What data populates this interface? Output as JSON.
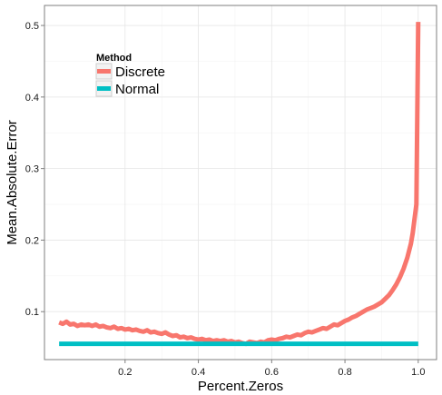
{
  "chart_data": {
    "type": "line",
    "xlabel": "Percent.Zeros",
    "ylabel": "Mean.Absolute.Error",
    "xlim": [
      -0.02,
      1.05
    ],
    "ylim": [
      0.033,
      0.528
    ],
    "x_ticks": [
      0.2,
      0.4,
      0.6,
      0.8,
      1.0
    ],
    "x_tick_labels": [
      "0.2",
      "0.4",
      "0.6",
      "0.8",
      "1.0"
    ],
    "y_ticks": [
      0.1,
      0.2,
      0.3,
      0.4,
      0.5
    ],
    "y_tick_labels": [
      "0.1",
      "0.2",
      "0.3",
      "0.4",
      "0.5"
    ],
    "grid": true,
    "legend": {
      "title": "Method",
      "position": "top-left",
      "entries": [
        "Discrete",
        "Normal"
      ]
    },
    "series": [
      {
        "name": "Discrete",
        "color": "#F8766D",
        "x": [
          0.02,
          0.03,
          0.04,
          0.05,
          0.06,
          0.07,
          0.08,
          0.09,
          0.1,
          0.11,
          0.12,
          0.13,
          0.14,
          0.15,
          0.16,
          0.17,
          0.18,
          0.19,
          0.2,
          0.21,
          0.22,
          0.23,
          0.24,
          0.25,
          0.26,
          0.27,
          0.28,
          0.29,
          0.3,
          0.31,
          0.32,
          0.33,
          0.34,
          0.35,
          0.36,
          0.37,
          0.38,
          0.39,
          0.4,
          0.41,
          0.42,
          0.43,
          0.44,
          0.45,
          0.46,
          0.47,
          0.48,
          0.49,
          0.5,
          0.51,
          0.52,
          0.53,
          0.54,
          0.55,
          0.56,
          0.57,
          0.58,
          0.59,
          0.6,
          0.61,
          0.62,
          0.63,
          0.64,
          0.65,
          0.66,
          0.67,
          0.68,
          0.69,
          0.7,
          0.71,
          0.72,
          0.73,
          0.74,
          0.75,
          0.76,
          0.77,
          0.78,
          0.79,
          0.8,
          0.81,
          0.82,
          0.83,
          0.84,
          0.85,
          0.86,
          0.87,
          0.88,
          0.89,
          0.9,
          0.91,
          0.92,
          0.93,
          0.94,
          0.95,
          0.96,
          0.97,
          0.98,
          0.985,
          0.99,
          0.995,
          1.0
        ],
        "values": [
          0.085,
          0.083,
          0.086,
          0.082,
          0.083,
          0.08,
          0.082,
          0.081,
          0.082,
          0.08,
          0.082,
          0.079,
          0.08,
          0.078,
          0.077,
          0.079,
          0.076,
          0.077,
          0.075,
          0.076,
          0.074,
          0.075,
          0.073,
          0.072,
          0.074,
          0.071,
          0.072,
          0.07,
          0.069,
          0.071,
          0.068,
          0.066,
          0.067,
          0.064,
          0.065,
          0.063,
          0.064,
          0.062,
          0.061,
          0.062,
          0.06,
          0.061,
          0.059,
          0.06,
          0.059,
          0.06,
          0.058,
          0.059,
          0.057,
          0.058,
          0.056,
          0.055,
          0.058,
          0.057,
          0.056,
          0.058,
          0.057,
          0.06,
          0.061,
          0.06,
          0.062,
          0.063,
          0.065,
          0.064,
          0.066,
          0.068,
          0.067,
          0.07,
          0.072,
          0.071,
          0.073,
          0.075,
          0.077,
          0.076,
          0.079,
          0.082,
          0.081,
          0.084,
          0.087,
          0.089,
          0.092,
          0.094,
          0.097,
          0.1,
          0.103,
          0.105,
          0.107,
          0.11,
          0.113,
          0.118,
          0.123,
          0.13,
          0.138,
          0.148,
          0.16,
          0.175,
          0.195,
          0.21,
          0.23,
          0.25,
          0.505
        ]
      },
      {
        "name": "Normal",
        "color": "#00BFC4",
        "x": [
          0.02,
          1.0
        ],
        "values": [
          0.055,
          0.055
        ]
      }
    ]
  }
}
